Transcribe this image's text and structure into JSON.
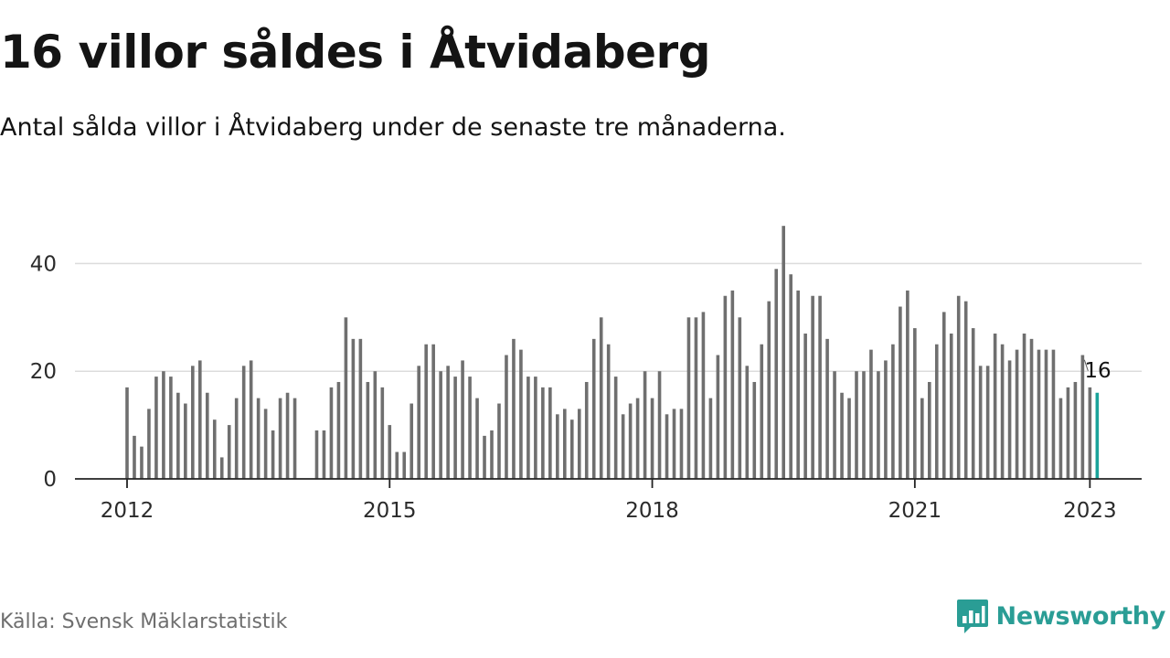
{
  "title": "16 villor såldes i Åtvidaberg",
  "subtitle": "Antal sålda villor i Åtvidaberg under de senaste tre månaderna.",
  "source": "Källa: Svensk Mäklarstatistik",
  "brand": {
    "name": "Newsworthy",
    "icon": "newsworthy-logo-icon",
    "color": "#2a9d95"
  },
  "chart_data": {
    "type": "bar",
    "bar_color": "#6f6f6f",
    "highlight_color": "#1aa39a",
    "grid": true,
    "ylim": [
      0,
      48
    ],
    "yticks": [
      0,
      20,
      40
    ],
    "x_start": "2012-01",
    "xticks": [
      {
        "label": "2012",
        "index": 0
      },
      {
        "label": "2015",
        "index": 36
      },
      {
        "label": "2018",
        "index": 72
      },
      {
        "label": "2021",
        "index": 108
      },
      {
        "label": "2023",
        "index": 132
      }
    ],
    "highlight_label": "16",
    "values": [
      17,
      8,
      6,
      13,
      19,
      20,
      19,
      16,
      14,
      21,
      22,
      16,
      11,
      4,
      10,
      15,
      21,
      22,
      15,
      13,
      9,
      15,
      16,
      15,
      null,
      null,
      9,
      9,
      17,
      18,
      30,
      26,
      26,
      18,
      20,
      17,
      10,
      5,
      5,
      14,
      21,
      25,
      25,
      20,
      21,
      19,
      22,
      19,
      15,
      8,
      9,
      14,
      23,
      26,
      24,
      19,
      19,
      17,
      17,
      12,
      13,
      11,
      13,
      18,
      26,
      30,
      25,
      19,
      12,
      14,
      15,
      20,
      15,
      20,
      12,
      13,
      13,
      30,
      30,
      31,
      15,
      23,
      34,
      35,
      30,
      21,
      18,
      25,
      33,
      39,
      47,
      38,
      35,
      27,
      34,
      34,
      26,
      20,
      16,
      15,
      20,
      20,
      24,
      20,
      22,
      25,
      32,
      35,
      28,
      15,
      18,
      25,
      31,
      27,
      34,
      33,
      28,
      21,
      21,
      27,
      25,
      22,
      24,
      27,
      26,
      24,
      24,
      24,
      15,
      17,
      18,
      23,
      17,
      16
    ]
  }
}
